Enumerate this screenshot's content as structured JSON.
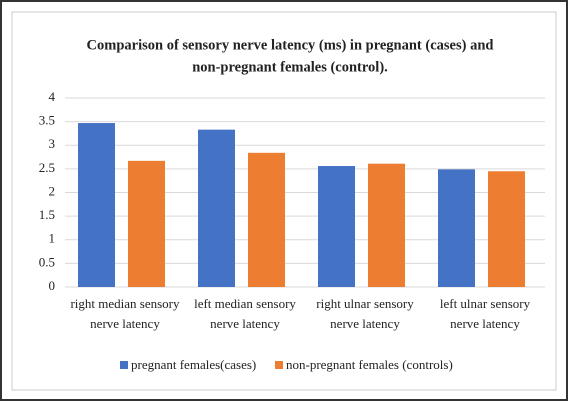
{
  "chart_data": {
    "type": "bar",
    "title": [
      "Comparison of sensory nerve latency  (ms) in pregnant (cases) and",
      "non-pregnant females (control)."
    ],
    "categories": [
      [
        "right median sensory",
        "nerve latency"
      ],
      [
        "left median sensory",
        "nerve latency"
      ],
      [
        "right ulnar sensory",
        "nerve latency"
      ],
      [
        "left ulnar sensory",
        "nerve latency"
      ]
    ],
    "series": [
      {
        "name": "pregnant females(cases)",
        "color": "#4472c4",
        "values": [
          3.47,
          3.33,
          2.56,
          2.49
        ]
      },
      {
        "name": "non-pregnant females (controls)",
        "color": "#ed7d31",
        "values": [
          2.67,
          2.84,
          2.61,
          2.45
        ]
      }
    ],
    "ylim": [
      0,
      4
    ],
    "yticks": [
      0,
      0.5,
      1,
      1.5,
      2,
      2.5,
      3,
      3.5,
      4
    ],
    "grid": true,
    "legend": "bottom"
  }
}
